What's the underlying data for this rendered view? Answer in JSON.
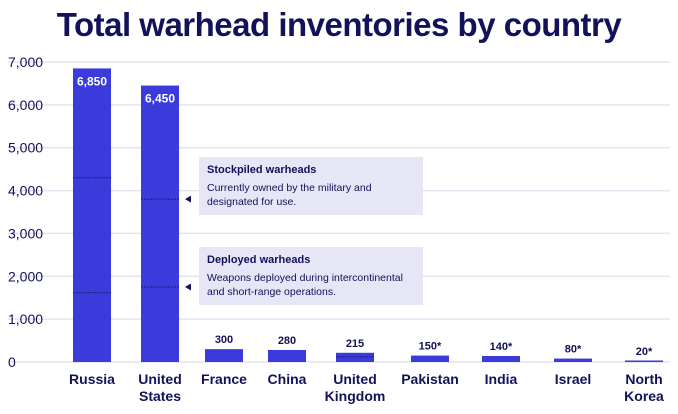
{
  "chart_data": {
    "type": "bar",
    "title": "Total warhead inventories by country",
    "xlabel": "",
    "ylabel": "",
    "ylim": [
      0,
      7000
    ],
    "yticks": [
      "0",
      "1,000",
      "2,000",
      "3,000",
      "4,000",
      "5,000",
      "6,000",
      "7,000"
    ],
    "grid": true,
    "categories": [
      [
        "Russia"
      ],
      [
        "United",
        "States"
      ],
      [
        "France"
      ],
      [
        "China"
      ],
      [
        "United",
        "Kingdom"
      ],
      [
        "Pakistan"
      ],
      [
        "India"
      ],
      [
        "Israel"
      ],
      [
        "North",
        "Korea"
      ]
    ],
    "values": [
      6850,
      6450,
      300,
      280,
      215,
      150,
      140,
      80,
      20
    ],
    "value_labels": [
      "6,850",
      "6,450",
      "300",
      "280",
      "215",
      "150*",
      "140*",
      "80*",
      "20*"
    ],
    "stockpiled_markers": {
      "Russia": 4300,
      "United States": 3800
    },
    "deployed_markers": {
      "Russia": 1620,
      "United States": 1750,
      "United Kingdom": 120
    },
    "annotations": [
      {
        "title": "Stockpiled warheads",
        "text": "Currently owned by the military and designated for use."
      },
      {
        "title": "Deployed warheads",
        "text": "Weapons deployed during intercontinental and short-range operations."
      }
    ],
    "colors": {
      "bar": "#3b3bdc",
      "text": "#12125a",
      "grid": "#e4e4f0",
      "annotation_bg": "#e6e6f7"
    }
  }
}
